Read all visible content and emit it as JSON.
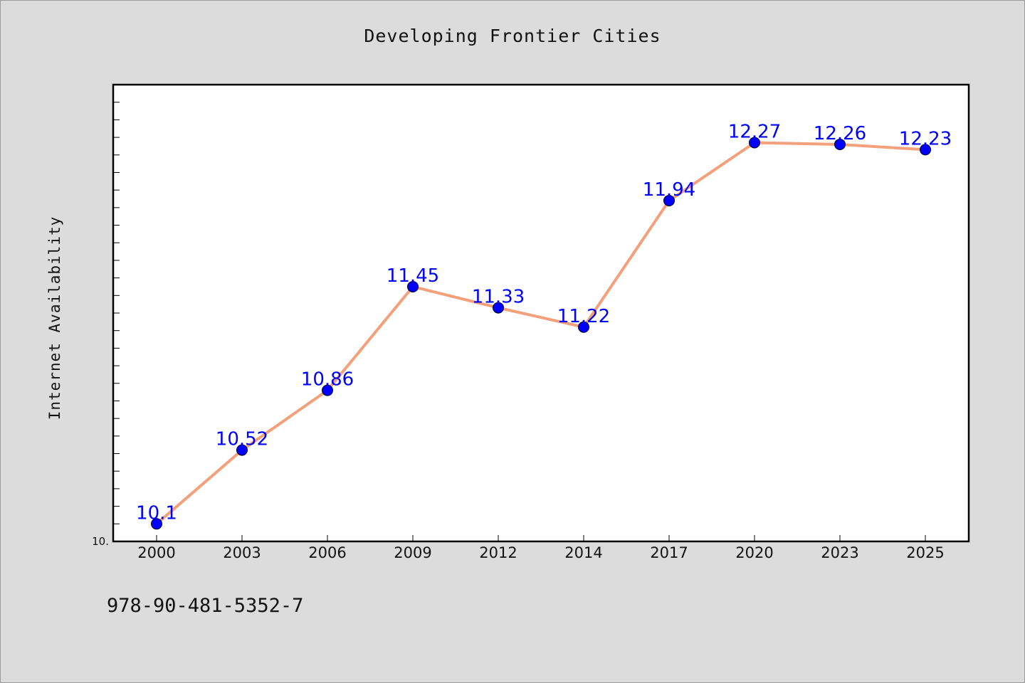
{
  "chart_data": {
    "type": "line",
    "title": "Developing Frontier Cities",
    "xlabel": "",
    "ylabel": "Internet Availability",
    "categories": [
      "2000",
      "2003",
      "2006",
      "2009",
      "2012",
      "2014",
      "2017",
      "2020",
      "2023",
      "2025"
    ],
    "series": [
      {
        "values": [
          10.1,
          10.52,
          10.86,
          11.45,
          11.33,
          11.22,
          11.94,
          12.27,
          12.26,
          12.23
        ],
        "labels": [
          "10.1",
          "10.52",
          "10.86",
          "11.45",
          "11.33",
          "11.22",
          "11.94",
          "12.27",
          "12.26",
          "12.23"
        ],
        "line_color": "#f4a07a",
        "marker_color": "#0000ff",
        "label_color": "#0000ff"
      }
    ],
    "ylim": [
      10.0,
      12.6
    ],
    "y_tick_labels": [
      "10."
    ],
    "grid": false,
    "legend": "none"
  },
  "footer": {
    "isbn": "978-90-481-5352-7"
  },
  "colors": {
    "background": "#dcdcdc",
    "plot_background": "#ffffff"
  }
}
